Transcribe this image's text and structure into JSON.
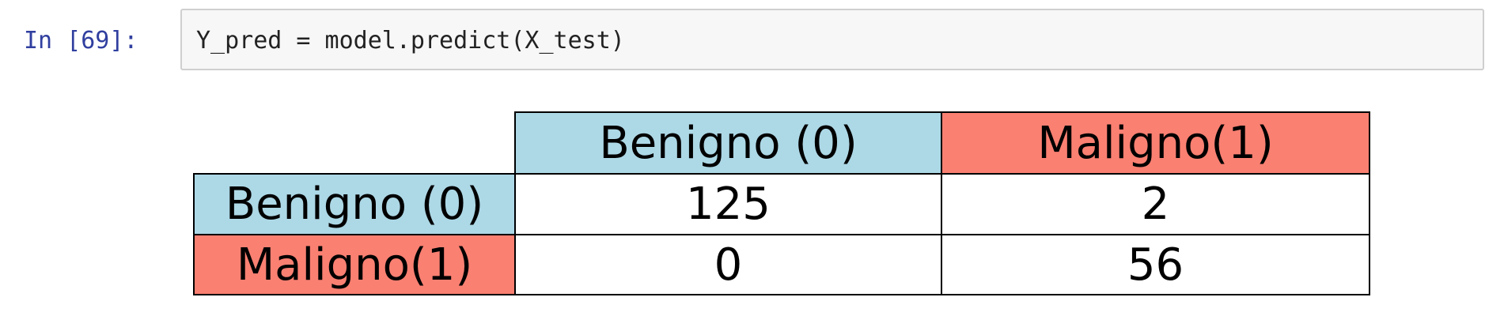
{
  "cell": {
    "prompt": "In [69]:",
    "code": "Y_pred = model.predict(X_test)"
  },
  "confusion_table": {
    "column_headers": [
      "Benigno (0)",
      "Maligno(1)"
    ],
    "row_headers": [
      "Benigno (0)",
      "Maligno(1)"
    ],
    "values": [
      [
        "125",
        "2"
      ],
      [
        "0",
        "56"
      ]
    ],
    "colors": {
      "benign_header": "#add8e6",
      "malignant_header": "#fa8072",
      "cell_background": "#ffffff",
      "border": "#000000"
    }
  }
}
